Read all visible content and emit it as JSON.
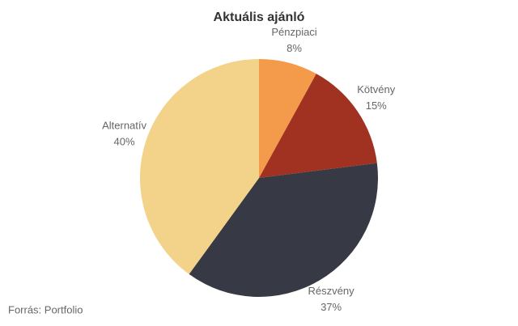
{
  "chart_data": {
    "type": "pie",
    "title": "Aktuális ajánló",
    "categories": [
      "Pénzpiaci",
      "Kötvény",
      "Részvény",
      "Alternatív"
    ],
    "values": [
      8,
      15,
      37,
      40
    ],
    "value_labels": [
      "8%",
      "15%",
      "37%",
      "40%"
    ],
    "colors": [
      "#f39b4a",
      "#a13221",
      "#373a44",
      "#f3d28a"
    ],
    "source": "Forrás: Portfolio"
  }
}
